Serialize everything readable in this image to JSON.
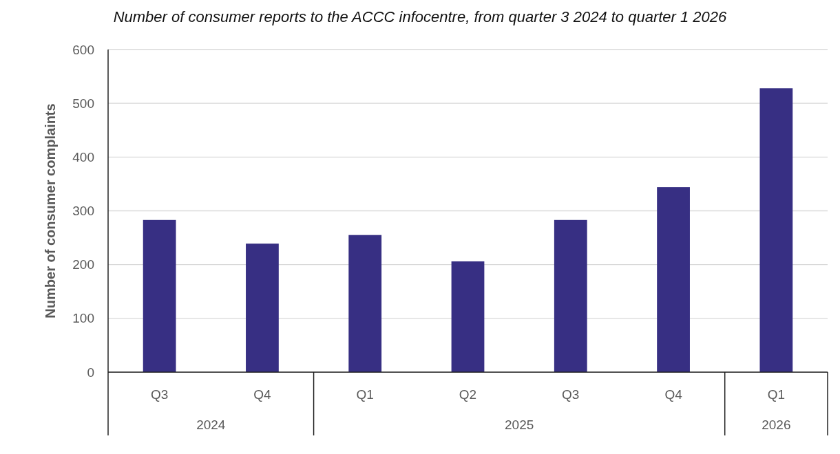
{
  "chart_data": {
    "type": "bar",
    "title": "Number of consumer reports to the ACCC infocentre, from quarter 3 2024 to quarter 1 2026",
    "ylabel": "Number of consumer complaints",
    "categories": [
      "Q3",
      "Q4",
      "Q1",
      "Q2",
      "Q3",
      "Q4",
      "Q1"
    ],
    "values": [
      283,
      239,
      255,
      206,
      283,
      344,
      528
    ],
    "color": "#372f83",
    "ylim": [
      0,
      600
    ],
    "yticks": [
      0,
      100,
      200,
      300,
      400,
      500,
      600
    ],
    "grid": "y",
    "annotations": [
      "2024",
      "2025",
      "2026"
    ]
  }
}
